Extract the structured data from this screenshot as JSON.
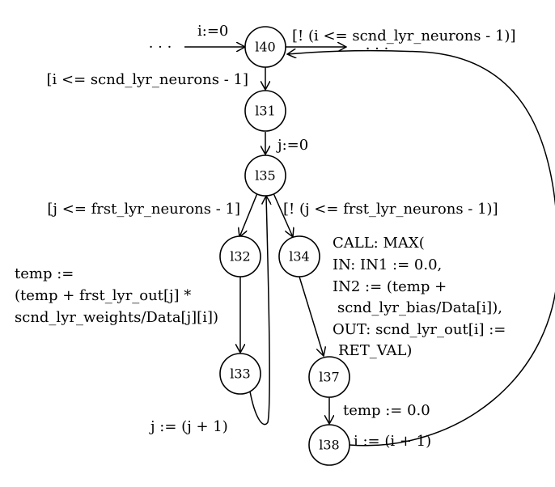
{
  "nodes": {
    "l40": "l40",
    "l31": "l31",
    "l35": "l35",
    "l32": "l32",
    "l34": "l34",
    "l33": "l33",
    "l37": "l37",
    "l38": "l38"
  },
  "ellipsis_in": "· · ·",
  "ellipsis_out": "· · ·",
  "edges": {
    "in_to_l40": "i:=0",
    "l40_exit": "[! (i <= scnd_lyr_neurons - 1)]",
    "l40_to_l31": "[i <= scnd_lyr_neurons - 1]",
    "l31_to_l35": "j:=0",
    "l35_to_l32": "[j <= frst_lyr_neurons - 1]",
    "l35_to_l34": "[! (j <= frst_lyr_neurons - 1)]",
    "l32_to_l33": [
      "temp :=",
      "(temp + frst_lyr_out[j] *",
      "scnd_lyr_weights/Data[j][i])"
    ],
    "l34_to_l37": [
      "CALL: MAX(",
      "IN: IN1 := 0.0,",
      "IN2 := (temp +",
      "scnd_lyr_bias/Data[i]),",
      "OUT: scnd_lyr_out[i] :=",
      "RET_VAL)"
    ],
    "l33_to_l35": "j := (j + 1)",
    "l37_to_l38": "temp := 0.0",
    "l38_to_l40": "i := (i + 1)"
  }
}
